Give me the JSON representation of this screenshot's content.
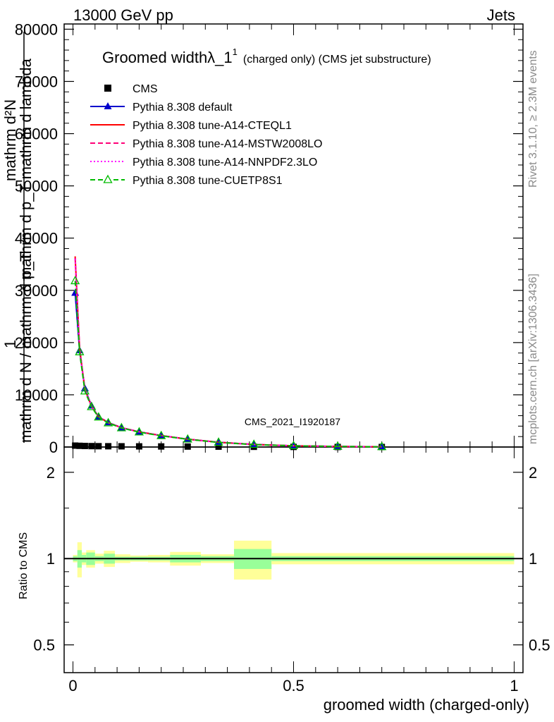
{
  "header": {
    "energy_label": "13000 GeV pp",
    "topic_label": "Jets"
  },
  "side_labels": {
    "rivet": "Rivet 3.1.10, ≥ 2.3M events",
    "site": "mcplots.cern.ch [arXiv:1306.3436]"
  },
  "analysis_id": "CMS_2021_I1920187",
  "chart_data": [
    {
      "type": "line",
      "title_main": "Groomed widthλ_1",
      "title_sup": "1",
      "title_sub": "(charged only) (CMS jet substructure)",
      "ylabel_top": "mathrm d²N",
      "ylabel_mid": "mathrm d p_T mathrm d lambda",
      "ylabel_bottom_num": "1",
      "ylabel_bottom_den": "mathrm d N / mathrm d p_T",
      "xlabel": "groomed width (charged-only)",
      "xlim": [
        -0.02,
        1.02
      ],
      "ylim": [
        0,
        81000
      ],
      "yticks": [
        0,
        10000,
        20000,
        30000,
        40000,
        50000,
        60000,
        70000,
        80000
      ],
      "ytick_labels": [
        "0",
        "10000",
        "20000",
        "30000",
        "40000",
        "50000",
        "60000",
        "70000",
        "80000"
      ],
      "x": [
        0.005,
        0.015,
        0.027,
        0.042,
        0.058,
        0.08,
        0.11,
        0.15,
        0.2,
        0.26,
        0.33,
        0.41,
        0.5,
        0.6,
        0.7
      ],
      "series": [
        {
          "name": "CMS",
          "marker": "square",
          "color": "#000000",
          "values": [
            270,
            230,
            200,
            175,
            160,
            150,
            140,
            125,
            110,
            90,
            70,
            40,
            20,
            10,
            5
          ]
        },
        {
          "name": "Pythia 8.308 default",
          "marker": "triangle",
          "color": "#0000cc",
          "values": [
            29500,
            18500,
            11200,
            7900,
            5800,
            4700,
            3700,
            2900,
            2200,
            1500,
            900,
            480,
            230,
            110,
            45
          ]
        },
        {
          "name": "Pythia 8.308 tune-A14-CTEQL1",
          "marker": "none",
          "dash": "solid",
          "color": "#ff0000",
          "values": [
            36500,
            19000,
            11000,
            7800,
            5800,
            4650,
            3700,
            2900,
            2200,
            1500,
            900,
            480,
            230,
            110,
            45
          ]
        },
        {
          "name": "Pythia 8.308 tune-A14-MSTW2008LO",
          "marker": "none",
          "dash": "dashed",
          "color": "#ff0077",
          "values": [
            36200,
            19000,
            11000,
            7800,
            5800,
            4650,
            3700,
            2900,
            2200,
            1500,
            900,
            480,
            230,
            110,
            45
          ]
        },
        {
          "name": "Pythia 8.308 tune-A14-NNPDF2.3LO",
          "marker": "none",
          "dash": "dotted",
          "color": "#ff00ff",
          "values": [
            36000,
            19000,
            11000,
            7800,
            5800,
            4650,
            3700,
            2900,
            2200,
            1500,
            900,
            480,
            230,
            110,
            45
          ]
        },
        {
          "name": "Pythia 8.308 tune-CUETP8S1",
          "marker": "open-triangle",
          "dash": "dashed",
          "color": "#00bb00",
          "values": [
            31800,
            18200,
            10700,
            7700,
            5700,
            4600,
            3650,
            2850,
            2150,
            1480,
            880,
            470,
            225,
            105,
            42
          ]
        }
      ]
    },
    {
      "type": "area",
      "ylabel": "Ratio to CMS",
      "xlim": [
        -0.02,
        1.02
      ],
      "ylim": [
        0.4,
        2.45
      ],
      "scale": "log",
      "yticks": [
        0.5,
        1,
        2
      ],
      "ytick_labels": [
        "0.5",
        "1",
        "2"
      ],
      "xticks": [
        0,
        0.5,
        1
      ],
      "xtick_labels": [
        "0",
        "0.5",
        "1"
      ],
      "bins": [
        {
          "lo": 0.0,
          "hi": 0.01,
          "stat": 0.02,
          "total": 0.03
        },
        {
          "lo": 0.01,
          "hi": 0.02,
          "stat": 0.07,
          "total": 0.14
        },
        {
          "lo": 0.02,
          "hi": 0.03,
          "stat": 0.03,
          "total": 0.05
        },
        {
          "lo": 0.03,
          "hi": 0.05,
          "stat": 0.05,
          "total": 0.07
        },
        {
          "lo": 0.05,
          "hi": 0.07,
          "stat": 0.02,
          "total": 0.04
        },
        {
          "lo": 0.07,
          "hi": 0.095,
          "stat": 0.04,
          "total": 0.065
        },
        {
          "lo": 0.095,
          "hi": 0.13,
          "stat": 0.015,
          "total": 0.035
        },
        {
          "lo": 0.13,
          "hi": 0.17,
          "stat": 0.015,
          "total": 0.025
        },
        {
          "lo": 0.17,
          "hi": 0.22,
          "stat": 0.015,
          "total": 0.03
        },
        {
          "lo": 0.22,
          "hi": 0.29,
          "stat": 0.03,
          "total": 0.055
        },
        {
          "lo": 0.29,
          "hi": 0.365,
          "stat": 0.02,
          "total": 0.035
        },
        {
          "lo": 0.365,
          "hi": 0.45,
          "stat": 0.08,
          "total": 0.155
        },
        {
          "lo": 0.45,
          "hi": 1.0,
          "stat": 0.02,
          "total": 0.045
        }
      ],
      "band_colors": {
        "stat": "#99ff99",
        "total": "#ffff99"
      }
    }
  ]
}
